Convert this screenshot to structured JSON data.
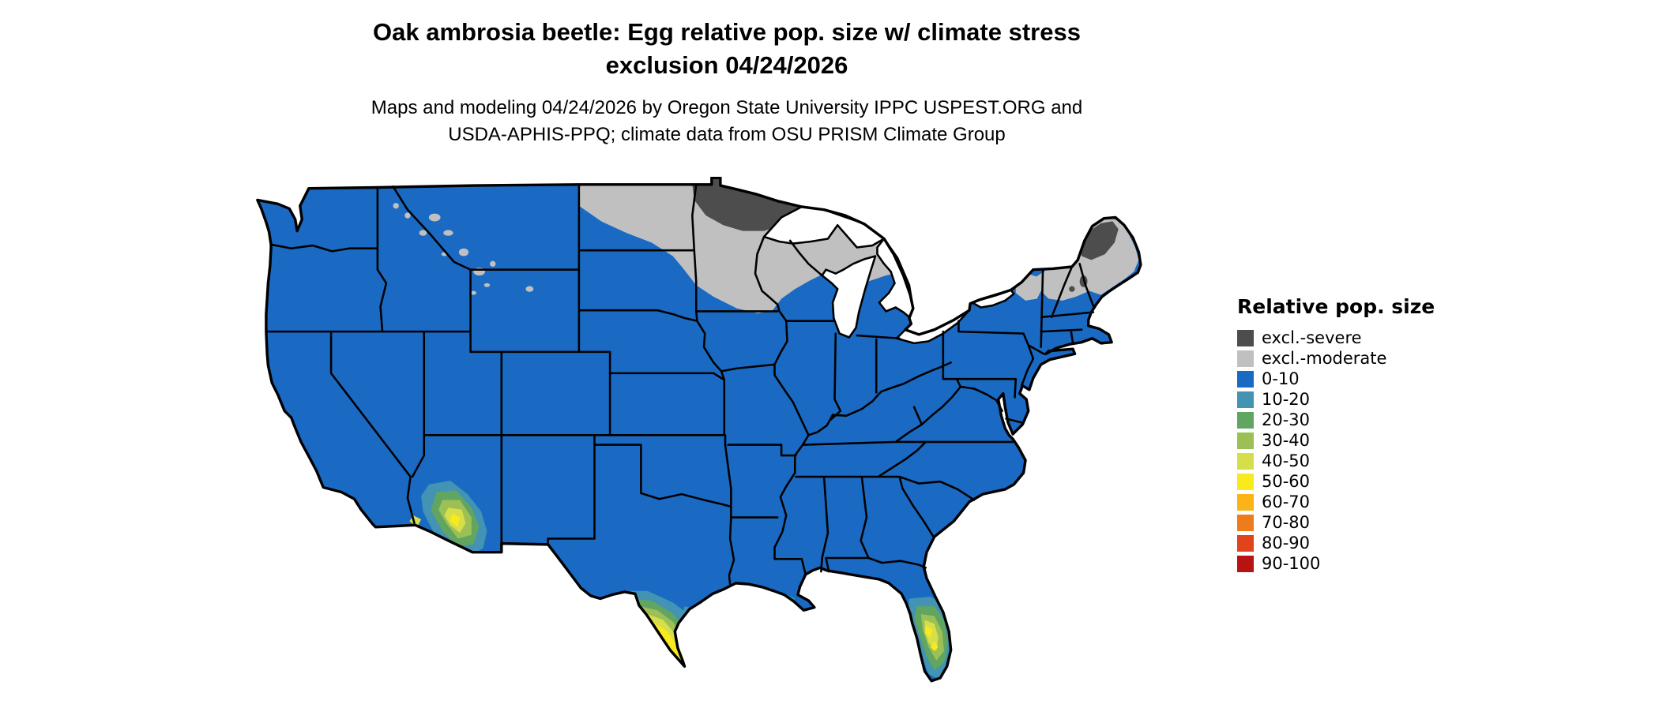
{
  "title": {
    "line1": "Oak ambrosia beetle: Egg relative pop. size w/ climate stress",
    "line2": "exclusion 04/24/2026"
  },
  "subtitle": {
    "line1": "Maps and modeling 04/24/2026 by Oregon State University IPPC USPEST.ORG and",
    "line2": "USDA-APHIS-PPQ; climate data from OSU PRISM Climate Group"
  },
  "legend": {
    "title": "Relative pop. size",
    "entries": [
      {
        "label": "excl.-severe",
        "color": "#4d4d4d"
      },
      {
        "label": "excl.-moderate",
        "color": "#c0c0c0"
      },
      {
        "label": "0-10",
        "color": "#1a6ac4"
      },
      {
        "label": "10-20",
        "color": "#4293b4"
      },
      {
        "label": "20-30",
        "color": "#62a560"
      },
      {
        "label": "30-40",
        "color": "#9cc055"
      },
      {
        "label": "40-50",
        "color": "#d6de49"
      },
      {
        "label": "50-60",
        "color": "#f8ea1c"
      },
      {
        "label": "60-70",
        "color": "#fbb316"
      },
      {
        "label": "70-80",
        "color": "#ef7c1b"
      },
      {
        "label": "80-90",
        "color": "#e2431d"
      },
      {
        "label": "90-100",
        "color": "#b81313"
      }
    ]
  },
  "map": {
    "background": "#ffffff",
    "border_color": "#000000",
    "base_fill": "0-10",
    "regions": [
      {
        "name": "conus-base",
        "value": "0-10"
      },
      {
        "name": "northern-exclusion-band",
        "value": "excl.-moderate"
      },
      {
        "name": "minnesota-arrowhead-blob",
        "value": "excl.-severe"
      },
      {
        "name": "northern-maine-blob",
        "value": "excl.-severe"
      },
      {
        "name": "new-england-band",
        "value": "excl.-moderate"
      },
      {
        "name": "adirondacks-patch",
        "value": "excl.-moderate"
      },
      {
        "name": "rockies-speckles",
        "value": "excl.-moderate"
      },
      {
        "name": "southern-arizona-hotspot",
        "values": [
          "10-20",
          "20-30",
          "30-40",
          "40-50",
          "50-60"
        ]
      },
      {
        "name": "south-texas-hotspot",
        "values": [
          "10-20",
          "20-30",
          "30-40",
          "40-50",
          "50-60"
        ]
      },
      {
        "name": "central-florida-hotspot",
        "values": [
          "10-20",
          "20-30",
          "30-40",
          "40-50",
          "50-60"
        ]
      },
      {
        "name": "louisiana-coast-specks",
        "value": "10-20"
      }
    ]
  }
}
